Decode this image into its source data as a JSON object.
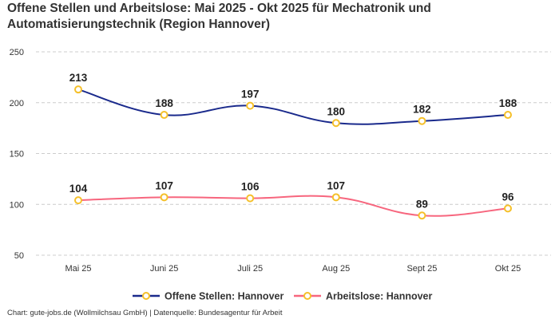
{
  "chart_data": {
    "type": "line",
    "title": "Offene Stellen und Arbeitslose: Mai 2025 - Okt 2025 für Mechatronik und Automatisierungstechnik (Region Hannover)",
    "categories": [
      "Mai 25",
      "Juni 25",
      "Juli 25",
      "Aug 25",
      "Sept 25",
      "Okt 25"
    ],
    "series": [
      {
        "name": "Offene Stellen: Hannover",
        "values": [
          213,
          188,
          197,
          180,
          182,
          188
        ],
        "color": "#1a2a8c"
      },
      {
        "name": "Arbeitslose: Hannover",
        "values": [
          104,
          107,
          106,
          107,
          89,
          96
        ],
        "color": "#f7667e"
      }
    ],
    "marker_color": "#f5c02a",
    "yticks": [
      50,
      100,
      150,
      200,
      250
    ],
    "ylim": [
      50,
      250
    ],
    "grid": true,
    "legend": "bottom",
    "xlabel": "",
    "ylabel": ""
  },
  "footer": "Chart: gute-jobs.de (Wollmilchsau GmbH) | Datenquelle: Bundesagentur für Arbeit"
}
